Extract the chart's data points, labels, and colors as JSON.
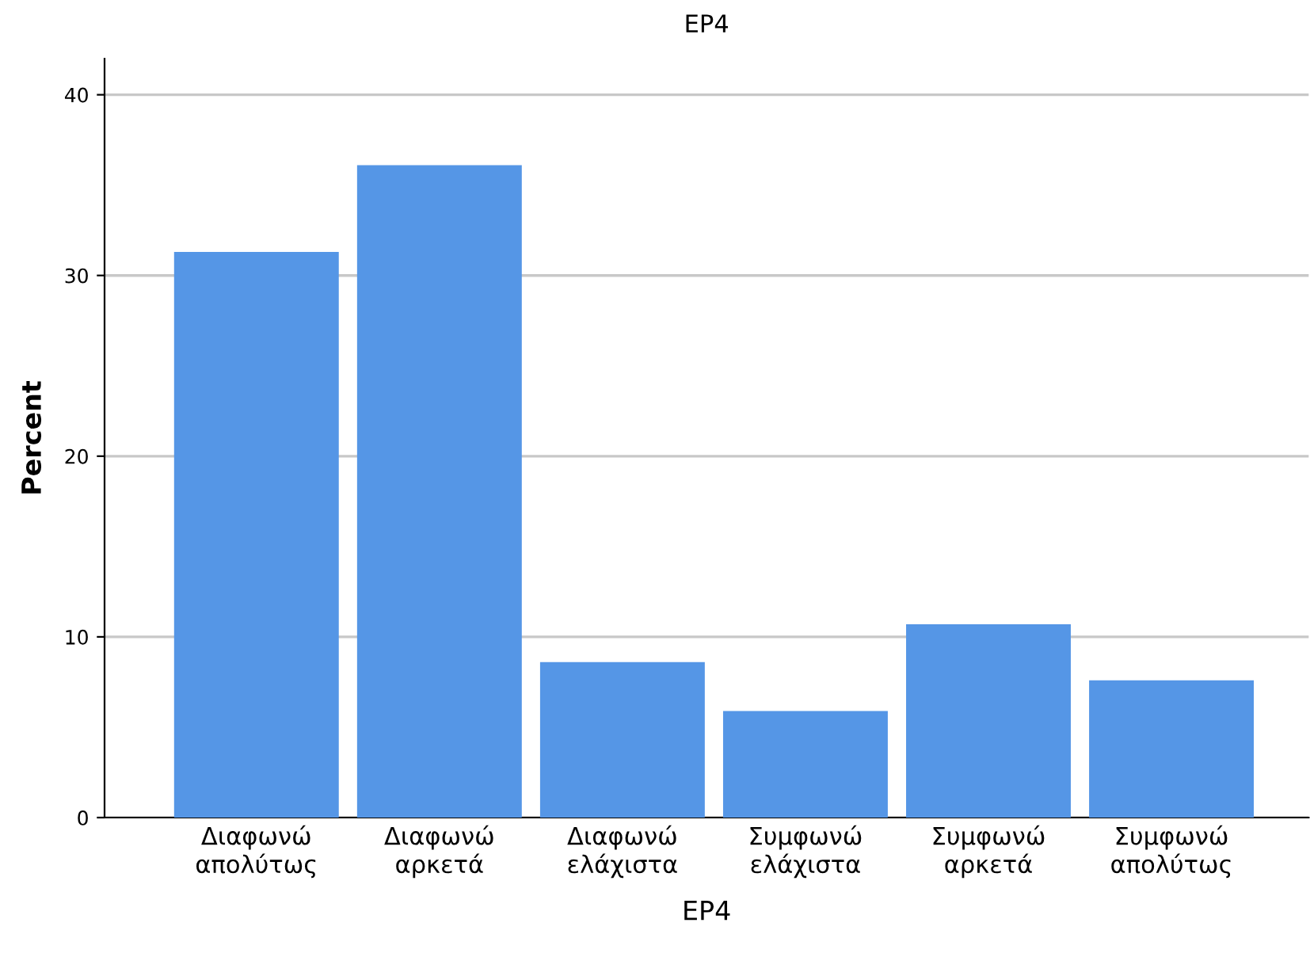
{
  "chart_data": {
    "type": "bar",
    "title": "EP4",
    "xlabel": "EP4",
    "ylabel": "Percent",
    "categories": [
      "Διαφωνώ\nαπολύτως",
      "Διαφωνώ\nαρκετά",
      "Διαφωνώ\nελάχιστα",
      "Συμφωνώ\nελάχιστα",
      "Συμφωνώ\nαρκετά",
      "Συμφωνώ\nαπολύτως"
    ],
    "values": [
      31.3,
      36.1,
      8.6,
      5.9,
      10.7,
      7.6
    ],
    "color": "#5596e6",
    "ylim": [
      0,
      42
    ],
    "yticks": [
      0,
      10,
      20,
      30,
      40
    ],
    "grid": "y"
  }
}
